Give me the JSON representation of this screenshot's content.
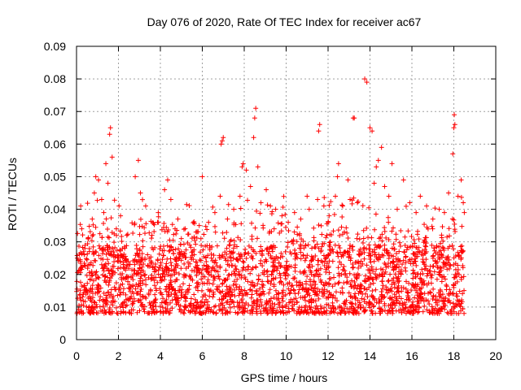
{
  "chart_data": {
    "type": "scatter",
    "title": "Day 076 of 2020, Rate Of TEC Index for receiver ac67",
    "xlabel": "GPS time / hours",
    "ylabel": "ROTI / TECUs",
    "xlim": [
      0,
      20
    ],
    "ylim": [
      0,
      0.09
    ],
    "x_ticks": [
      0,
      2,
      4,
      6,
      8,
      10,
      12,
      14,
      16,
      18,
      20
    ],
    "x_tick_labels": [
      "0",
      "2",
      "4",
      "6",
      "8",
      "10",
      "12",
      "14",
      "16",
      "18",
      "20"
    ],
    "y_ticks": [
      0,
      0.01,
      0.02,
      0.03,
      0.04,
      0.05,
      0.06,
      0.07,
      0.08,
      0.09
    ],
    "y_tick_labels": [
      "0",
      "0.01",
      "0.02",
      "0.03",
      "0.04",
      "0.05",
      "0.06",
      "0.07",
      "0.08",
      "0.09"
    ],
    "grid": true,
    "marker": "+",
    "series": [
      {
        "name": "ROTI",
        "color": "#ff0000",
        "x_range": [
          0,
          18.5
        ],
        "typical_range": [
          0.005,
          0.03
        ],
        "points": [
          [
            0.1,
            0.021
          ],
          [
            0.2,
            0.041
          ],
          [
            0.25,
            0.034
          ],
          [
            0.4,
            0.028
          ],
          [
            0.55,
            0.031
          ],
          [
            0.75,
            0.037
          ],
          [
            0.85,
            0.045
          ],
          [
            0.92,
            0.05
          ],
          [
            1.05,
            0.049
          ],
          [
            1.2,
            0.043
          ],
          [
            1.3,
            0.039
          ],
          [
            1.4,
            0.054
          ],
          [
            1.5,
            0.048
          ],
          [
            1.58,
            0.063
          ],
          [
            1.62,
            0.065
          ],
          [
            1.7,
            0.056
          ],
          [
            1.9,
            0.034
          ],
          [
            2.1,
            0.038
          ],
          [
            2.4,
            0.032
          ],
          [
            2.8,
            0.05
          ],
          [
            2.95,
            0.055
          ],
          [
            3.05,
            0.045
          ],
          [
            3.3,
            0.041
          ],
          [
            3.6,
            0.032
          ],
          [
            3.9,
            0.039
          ],
          [
            4.2,
            0.046
          ],
          [
            4.35,
            0.049
          ],
          [
            4.5,
            0.043
          ],
          [
            4.7,
            0.034
          ],
          [
            5.0,
            0.031
          ],
          [
            5.4,
            0.029
          ],
          [
            5.7,
            0.033
          ],
          [
            6.0,
            0.05
          ],
          [
            6.3,
            0.036
          ],
          [
            6.6,
            0.039
          ],
          [
            6.9,
            0.06
          ],
          [
            6.95,
            0.061
          ],
          [
            7.0,
            0.062
          ],
          [
            7.2,
            0.037
          ],
          [
            7.5,
            0.04
          ],
          [
            7.8,
            0.044
          ],
          [
            7.9,
            0.053
          ],
          [
            7.95,
            0.054
          ],
          [
            8.1,
            0.052
          ],
          [
            8.3,
            0.047
          ],
          [
            8.45,
            0.062
          ],
          [
            8.5,
            0.068
          ],
          [
            8.55,
            0.071
          ],
          [
            8.65,
            0.053
          ],
          [
            8.8,
            0.042
          ],
          [
            9.05,
            0.046
          ],
          [
            9.25,
            0.041
          ],
          [
            9.5,
            0.04
          ],
          [
            9.8,
            0.038
          ],
          [
            10.1,
            0.036
          ],
          [
            10.4,
            0.039
          ],
          [
            10.7,
            0.037
          ],
          [
            11.0,
            0.044
          ],
          [
            11.1,
            0.04
          ],
          [
            11.5,
            0.043
          ],
          [
            11.55,
            0.064
          ],
          [
            11.6,
            0.066
          ],
          [
            11.8,
            0.041
          ],
          [
            12.05,
            0.038
          ],
          [
            12.35,
            0.044
          ],
          [
            12.45,
            0.05
          ],
          [
            12.5,
            0.054
          ],
          [
            12.7,
            0.041
          ],
          [
            12.95,
            0.049
          ],
          [
            13.05,
            0.043
          ],
          [
            13.2,
            0.068
          ],
          [
            13.25,
            0.068
          ],
          [
            13.4,
            0.042
          ],
          [
            13.75,
            0.08
          ],
          [
            13.85,
            0.079
          ],
          [
            14.0,
            0.065
          ],
          [
            14.1,
            0.064
          ],
          [
            14.2,
            0.048
          ],
          [
            14.3,
            0.053
          ],
          [
            14.4,
            0.055
          ],
          [
            14.55,
            0.059
          ],
          [
            14.7,
            0.047
          ],
          [
            14.9,
            0.044
          ],
          [
            15.05,
            0.054
          ],
          [
            15.3,
            0.04
          ],
          [
            15.6,
            0.049
          ],
          [
            15.9,
            0.042
          ],
          [
            16.2,
            0.039
          ],
          [
            16.4,
            0.044
          ],
          [
            16.7,
            0.041
          ],
          [
            17.0,
            0.037
          ],
          [
            17.3,
            0.04
          ],
          [
            17.55,
            0.039
          ],
          [
            17.75,
            0.045
          ],
          [
            17.95,
            0.057
          ],
          [
            18.0,
            0.065
          ],
          [
            18.02,
            0.069
          ],
          [
            18.05,
            0.066
          ],
          [
            18.2,
            0.044
          ],
          [
            18.35,
            0.049
          ],
          [
            18.45,
            0.042
          ],
          [
            18.5,
            0.039
          ]
        ]
      }
    ]
  }
}
